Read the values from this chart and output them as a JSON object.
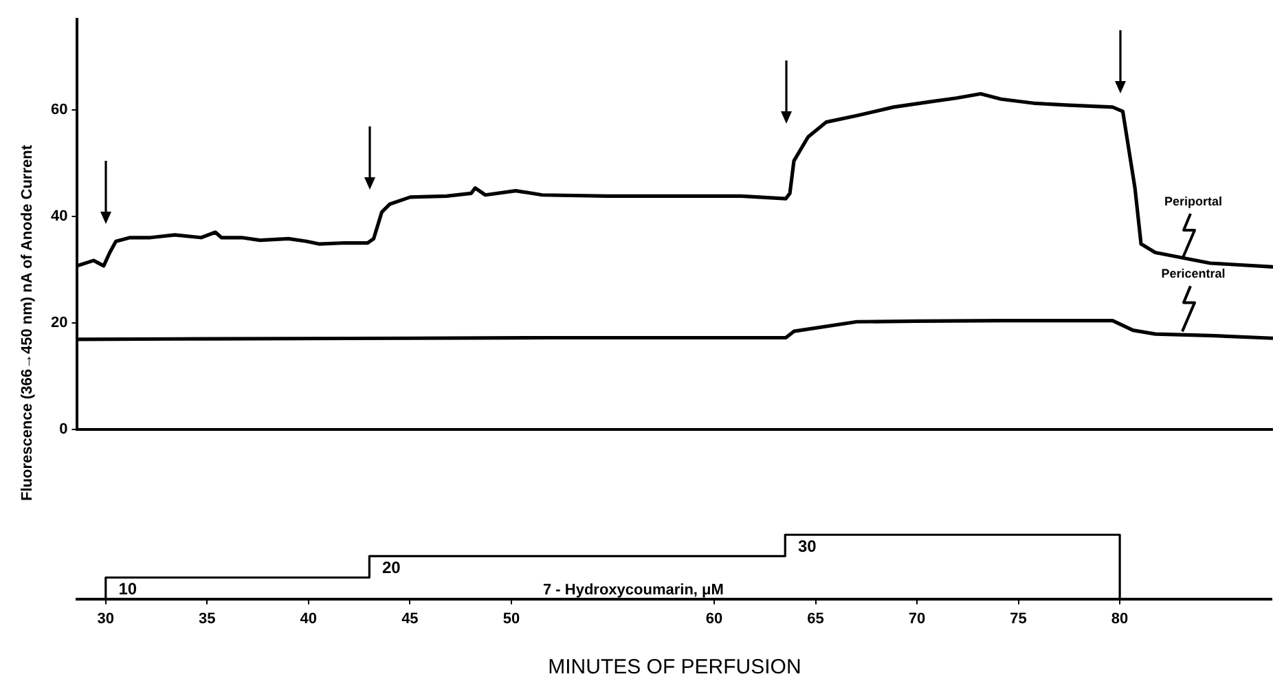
{
  "chart_data": [
    {
      "type": "line",
      "ylabel": "Fluorescence (366→450 nm) nA of Anode Current",
      "xlim": [
        28.6,
        87.5
      ],
      "ylim": [
        0,
        77
      ],
      "yticks": [
        0,
        20,
        40,
        60
      ],
      "tick_labels": "y",
      "grid": false,
      "legend": false,
      "marker": "none",
      "line_style": "solid",
      "series": [
        {
          "name": "Periportal",
          "color": "#000000",
          "x": [
            28.6,
            29.4,
            29.9,
            30.2,
            30.5,
            31.2,
            32.2,
            33.4,
            34.7,
            35.4,
            35.7,
            36.7,
            37.6,
            39.0,
            39.9,
            40.5,
            41.8,
            42.9,
            43.2,
            43.6,
            44.0,
            45.0,
            46.8,
            48.0,
            48.2,
            48.7,
            50.2,
            51.5,
            54.7,
            58.6,
            61.3,
            63.5,
            63.7,
            63.9,
            64.6,
            65.5,
            67.0,
            68.8,
            70.6,
            71.9,
            73.1,
            74.1,
            75.8,
            77.3,
            79.6,
            80.1,
            80.7,
            81.0,
            81.7,
            84.4,
            87.5
          ],
          "values": [
            30.7,
            31.7,
            30.7,
            33.2,
            35.3,
            36,
            36,
            36.5,
            36,
            37,
            36,
            36,
            35.5,
            35.8,
            35.3,
            34.8,
            35,
            35,
            35.8,
            40.8,
            42.3,
            43.6,
            43.8,
            44.3,
            45.3,
            44,
            44.8,
            44,
            43.8,
            43.8,
            43.8,
            43.3,
            44.3,
            50.4,
            54.9,
            57.7,
            58.9,
            60.5,
            61.5,
            62.2,
            63,
            62,
            61.2,
            60.9,
            60.5,
            59.7,
            45.3,
            34.8,
            33.2,
            31.2,
            30.5
          ]
        },
        {
          "name": "Pericentral",
          "color": "#000000",
          "x": [
            28.6,
            35,
            45,
            51.9,
            63.5,
            63.9,
            67,
            69.9,
            74.1,
            79.6,
            80.6,
            81.7,
            84.4,
            87.5
          ],
          "values": [
            16.9,
            17,
            17.1,
            17.2,
            17.2,
            18.4,
            20.2,
            20.3,
            20.4,
            20.4,
            18.6,
            17.9,
            17.6,
            17.1
          ]
        }
      ]
    },
    {
      "type": "step",
      "xlabel": "MINUTES OF PERFUSION",
      "annotations": [
        "7 - Hydroxycoumarin, μM"
      ],
      "xlim": [
        28.6,
        87.5
      ],
      "xticks": [
        30,
        35,
        40,
        45,
        50,
        60,
        65,
        70,
        75,
        80
      ],
      "tick_labels": "x",
      "grid": false,
      "legend": false,
      "marker": "none",
      "line_style": "solid",
      "x": [
        30,
        30,
        43.0,
        63.5,
        80
      ],
      "values": [
        0,
        10,
        20,
        30,
        0
      ],
      "value_labels": [
        null,
        "10",
        "20",
        "30",
        null
      ],
      "color": "#000000"
    }
  ]
}
